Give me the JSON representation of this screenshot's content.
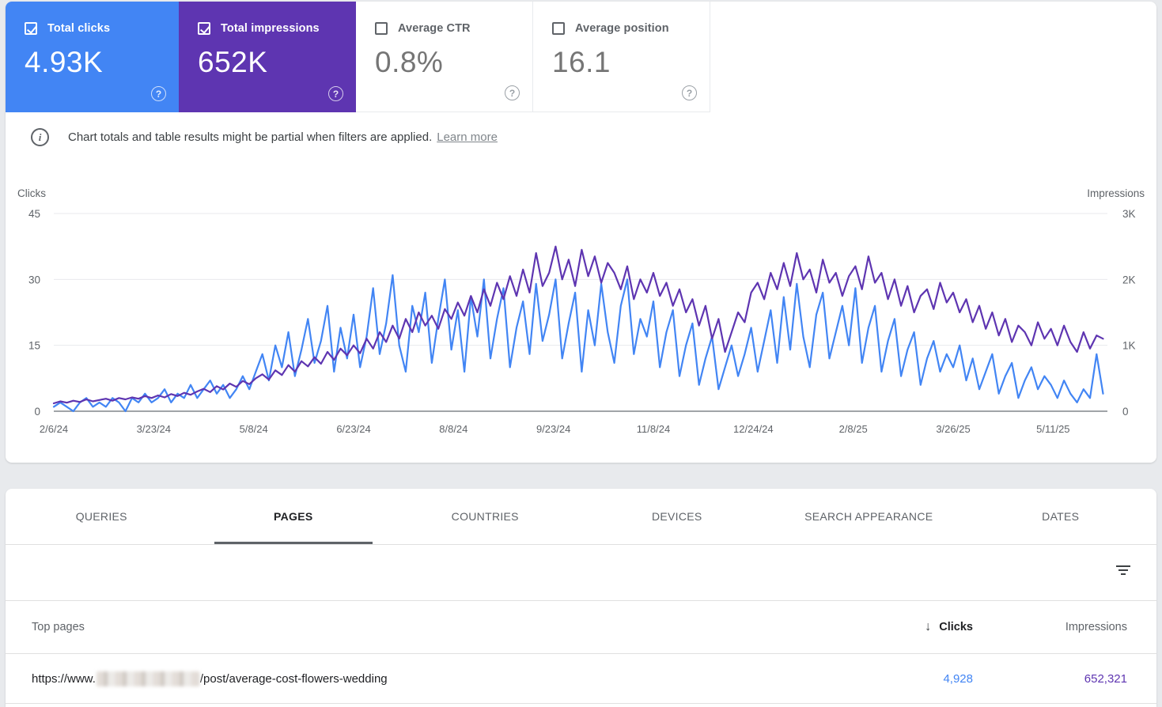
{
  "metrics": {
    "cards": [
      {
        "label": "Total clicks",
        "value": "4.93K",
        "checked": true
      },
      {
        "label": "Total impressions",
        "value": "652K",
        "checked": true
      },
      {
        "label": "Average CTR",
        "value": "0.8%",
        "checked": false
      },
      {
        "label": "Average position",
        "value": "16.1",
        "checked": false
      }
    ],
    "help_glyph": "?"
  },
  "banner": {
    "text": "Chart totals and table results might be partial when filters are applied.",
    "link_label": "Learn more",
    "icon_glyph": "i"
  },
  "chart_data": {
    "type": "line",
    "left_axis": {
      "label": "Clicks",
      "min": 0,
      "max": 45,
      "ticks": [
        45,
        30,
        15,
        0
      ],
      "tick_labels": [
        "45",
        "30",
        "15",
        "0"
      ]
    },
    "right_axis": {
      "label": "Impressions",
      "min": 0,
      "max": 3000,
      "ticks": [
        3000,
        2000,
        1000,
        0
      ],
      "tick_labels": [
        "3K",
        "2K",
        "1K",
        "0"
      ]
    },
    "x_tick_labels": [
      "2/6/24",
      "3/23/24",
      "5/8/24",
      "6/23/24",
      "8/8/24",
      "9/23/24",
      "11/8/24",
      "12/24/24",
      "2/8/25",
      "3/26/25",
      "5/11/25"
    ],
    "x_tick_days": [
      0,
      46,
      92,
      138,
      184,
      230,
      276,
      322,
      368,
      414,
      460
    ],
    "x_total_days": 485,
    "point_interval_days": 3,
    "grid": true,
    "legend": "none",
    "series": [
      {
        "name": "Clicks",
        "axis": "left",
        "color": "#4285f4",
        "values": [
          1,
          2,
          1,
          0,
          2,
          3,
          1,
          2,
          1,
          3,
          2,
          0,
          3,
          2,
          4,
          2,
          3,
          5,
          2,
          4,
          3,
          6,
          3,
          5,
          7,
          4,
          6,
          3,
          5,
          8,
          5,
          9,
          13,
          7,
          15,
          10,
          18,
          8,
          14,
          21,
          11,
          16,
          24,
          9,
          19,
          12,
          22,
          10,
          17,
          28,
          13,
          20,
          31,
          15,
          9,
          24,
          18,
          27,
          11,
          21,
          30,
          14,
          23,
          9,
          26,
          17,
          30,
          12,
          21,
          28,
          10,
          19,
          25,
          13,
          29,
          16,
          22,
          30,
          12,
          20,
          27,
          9,
          23,
          15,
          29,
          18,
          11,
          24,
          30,
          13,
          21,
          17,
          25,
          10,
          18,
          23,
          8,
          15,
          20,
          6,
          12,
          17,
          5,
          10,
          15,
          8,
          13,
          19,
          9,
          16,
          23,
          11,
          26,
          14,
          29,
          17,
          10,
          22,
          27,
          12,
          18,
          24,
          15,
          28,
          11,
          19,
          24,
          9,
          16,
          21,
          8,
          14,
          18,
          6,
          12,
          16,
          9,
          13,
          10,
          15,
          7,
          12,
          5,
          9,
          13,
          4,
          8,
          11,
          3,
          7,
          10,
          5,
          8,
          6,
          3,
          7,
          4,
          2,
          5,
          3,
          13,
          4
        ]
      },
      {
        "name": "Impressions",
        "axis": "right",
        "color": "#5e35b1",
        "values": [
          120,
          150,
          130,
          160,
          140,
          180,
          150,
          170,
          190,
          160,
          200,
          180,
          210,
          190,
          230,
          200,
          240,
          210,
          260,
          230,
          280,
          250,
          300,
          340,
          290,
          380,
          330,
          420,
          370,
          460,
          410,
          500,
          560,
          480,
          620,
          550,
          700,
          600,
          760,
          680,
          820,
          720,
          900,
          780,
          950,
          850,
          1000,
          880,
          1100,
          950,
          1200,
          1050,
          1300,
          1100,
          1400,
          1200,
          1500,
          1300,
          1450,
          1250,
          1550,
          1400,
          1650,
          1450,
          1750,
          1500,
          1850,
          1600,
          1950,
          1700,
          2050,
          1750,
          2150,
          1800,
          2400,
          1900,
          2100,
          2500,
          2000,
          2300,
          1900,
          2450,
          2050,
          2350,
          1950,
          2250,
          2100,
          1850,
          2200,
          1700,
          2000,
          1800,
          2100,
          1750,
          1950,
          1600,
          1850,
          1500,
          1700,
          1300,
          1600,
          1100,
          1400,
          900,
          1200,
          1500,
          1350,
          1800,
          1950,
          1700,
          2100,
          1850,
          2250,
          1900,
          2400,
          2000,
          2150,
          1800,
          2300,
          1950,
          2100,
          1750,
          2050,
          2200,
          1850,
          2350,
          1950,
          2100,
          1700,
          2000,
          1600,
          1900,
          1500,
          1750,
          1850,
          1550,
          1950,
          1650,
          1800,
          1500,
          1700,
          1350,
          1600,
          1250,
          1500,
          1150,
          1400,
          1050,
          1300,
          1200,
          1000,
          1350,
          1100,
          1250,
          1000,
          1300,
          1050,
          900,
          1200,
          950,
          1150,
          1100
        ]
      }
    ]
  },
  "tabs": [
    {
      "label": "QUERIES"
    },
    {
      "label": "PAGES"
    },
    {
      "label": "COUNTRIES"
    },
    {
      "label": "DEVICES"
    },
    {
      "label": "SEARCH APPEARANCE"
    },
    {
      "label": "DATES"
    }
  ],
  "table": {
    "header": {
      "rows_label": "Top pages",
      "clicks_label": "Clicks",
      "impressions_label": "Impressions",
      "sort_icon": "↓"
    },
    "rows": [
      {
        "url_prefix": "https://www.",
        "url_suffix": "/post/average-cost-flowers-wedding",
        "clicks": "4,928",
        "impressions": "652,321"
      }
    ]
  },
  "colors": {
    "clicks_accent": "#4285f4",
    "impressions_accent": "#5e35b1",
    "grid_line": "#e8eaed",
    "axis_line": "#80868b",
    "text_muted": "#5f6368"
  }
}
